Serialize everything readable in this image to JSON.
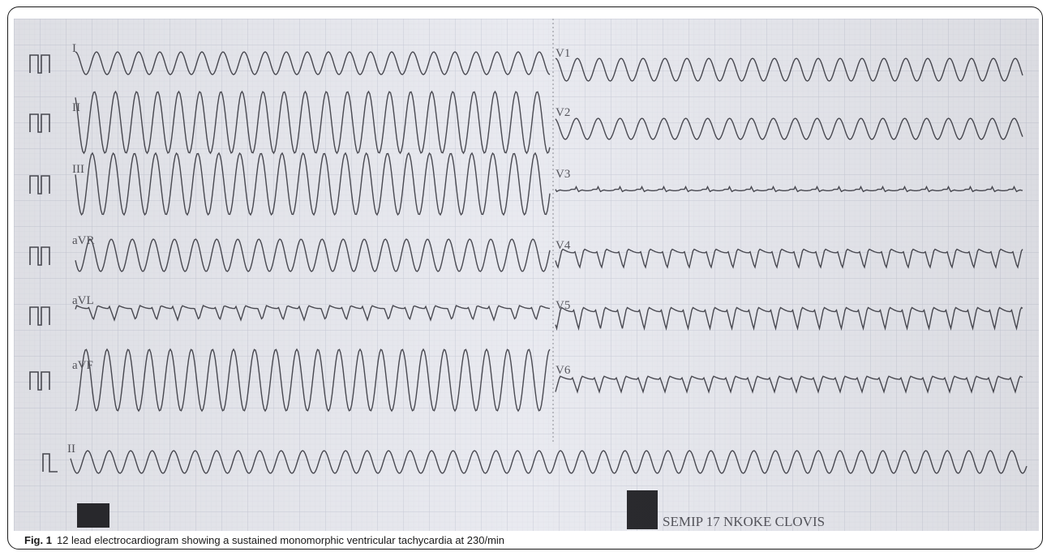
{
  "figure": {
    "label": "Fig. 1",
    "caption": "12 lead electrocardiogram showing a sustained monomorphic ventricular tachycardia at 230/min"
  },
  "ecg": {
    "leads_left": [
      "I",
      "II",
      "III",
      "aVR",
      "aVL",
      "aVF"
    ],
    "leads_right": [
      "V1",
      "V2",
      "V3",
      "V4",
      "V5",
      "V6"
    ],
    "rhythm_lead": "II",
    "printout_text": "SEMIP 17  NKOKE CLOVIS",
    "colors": {
      "paper": "#e9eaf0",
      "grid_major": "#c9ccd8",
      "grid_minor": "#dcdee6",
      "trace": "#4a4a52",
      "marker_block": "#2a2a2e"
    }
  }
}
